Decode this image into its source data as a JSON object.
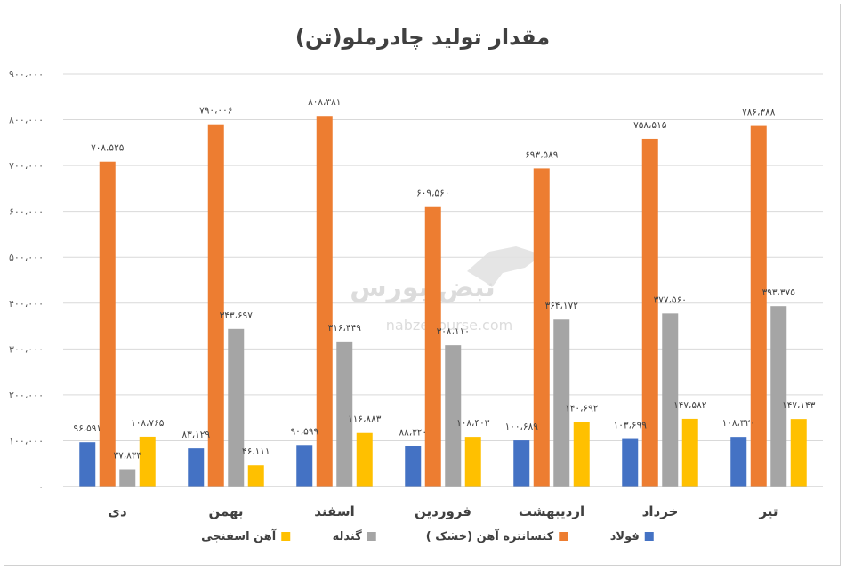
{
  "chart_data": {
    "type": "bar",
    "title": "مقدار تولید چادرملو(تن)",
    "categories": [
      "دی",
      "بهمن",
      "اسفند",
      "فروردین",
      "اردیبهشت",
      "خرداد",
      "تیر"
    ],
    "ylim": [
      0,
      900000
    ],
    "yticks": [
      0,
      100000,
      200000,
      300000,
      400000,
      500000,
      600000,
      700000,
      800000,
      900000
    ],
    "ytick_labels": [
      "۰",
      "۱۰۰،۰۰۰",
      "۲۰۰،۰۰۰",
      "۳۰۰،۰۰۰",
      "۴۰۰،۰۰۰",
      "۵۰۰،۰۰۰",
      "۶۰۰،۰۰۰",
      "۷۰۰،۰۰۰",
      "۸۰۰،۰۰۰",
      "۹۰۰،۰۰۰"
    ],
    "grid": true,
    "legend_position": "bottom",
    "series": [
      {
        "name": "فولاد",
        "color": "#4472C4",
        "values": [
          96591,
          83129,
          90599,
          88320,
          100689,
          103699,
          108320
        ],
        "labels": [
          "۹۶،۵۹۱",
          "۸۳،۱۲۹",
          "۹۰،۵۹۹",
          "۸۸،۳۲۰",
          "۱۰۰،۶۸۹",
          "۱۰۳،۶۹۹",
          "۱۰۸،۳۲۰"
        ]
      },
      {
        "name": "کنسانتره آهن (خشک )",
        "color": "#ED7D31",
        "values": [
          708525,
          790006,
          808381,
          609560,
          693589,
          758515,
          786388
        ],
        "labels": [
          "۷۰۸،۵۲۵",
          "۷۹۰،۰۰۶",
          "۸۰۸،۳۸۱",
          "۶۰۹،۵۶۰",
          "۶۹۳،۵۸۹",
          "۷۵۸،۵۱۵",
          "۷۸۶،۳۸۸"
        ]
      },
      {
        "name": "گندله",
        "color": "#A5A5A5",
        "values": [
          37834,
          343697,
          316449,
          308110,
          364172,
          377560,
          393375
        ],
        "labels": [
          "۳۷،۸۳۴",
          "۳۴۳،۶۹۷",
          "۳۱۶،۴۴۹",
          "۳۰۸،۱۱۰",
          "۳۶۴،۱۷۲",
          "۳۷۷،۵۶۰",
          "۳۹۳،۳۷۵"
        ]
      },
      {
        "name": "آهن اسفنجی",
        "color": "#FFC000",
        "values": [
          108765,
          46111,
          116883,
          108403,
          140692,
          147582,
          147143
        ],
        "labels": [
          "۱۰۸،۷۶۵",
          "۴۶،۱۱۱",
          "۱۱۶،۸۸۳",
          "۱۰۸،۴۰۳",
          "۱۴۰،۶۹۲",
          "۱۴۷،۵۸۲",
          "۱۴۷،۱۴۳"
        ]
      }
    ]
  },
  "watermark": {
    "brand": "نبض بورس",
    "url": "nabzebourse.com"
  }
}
